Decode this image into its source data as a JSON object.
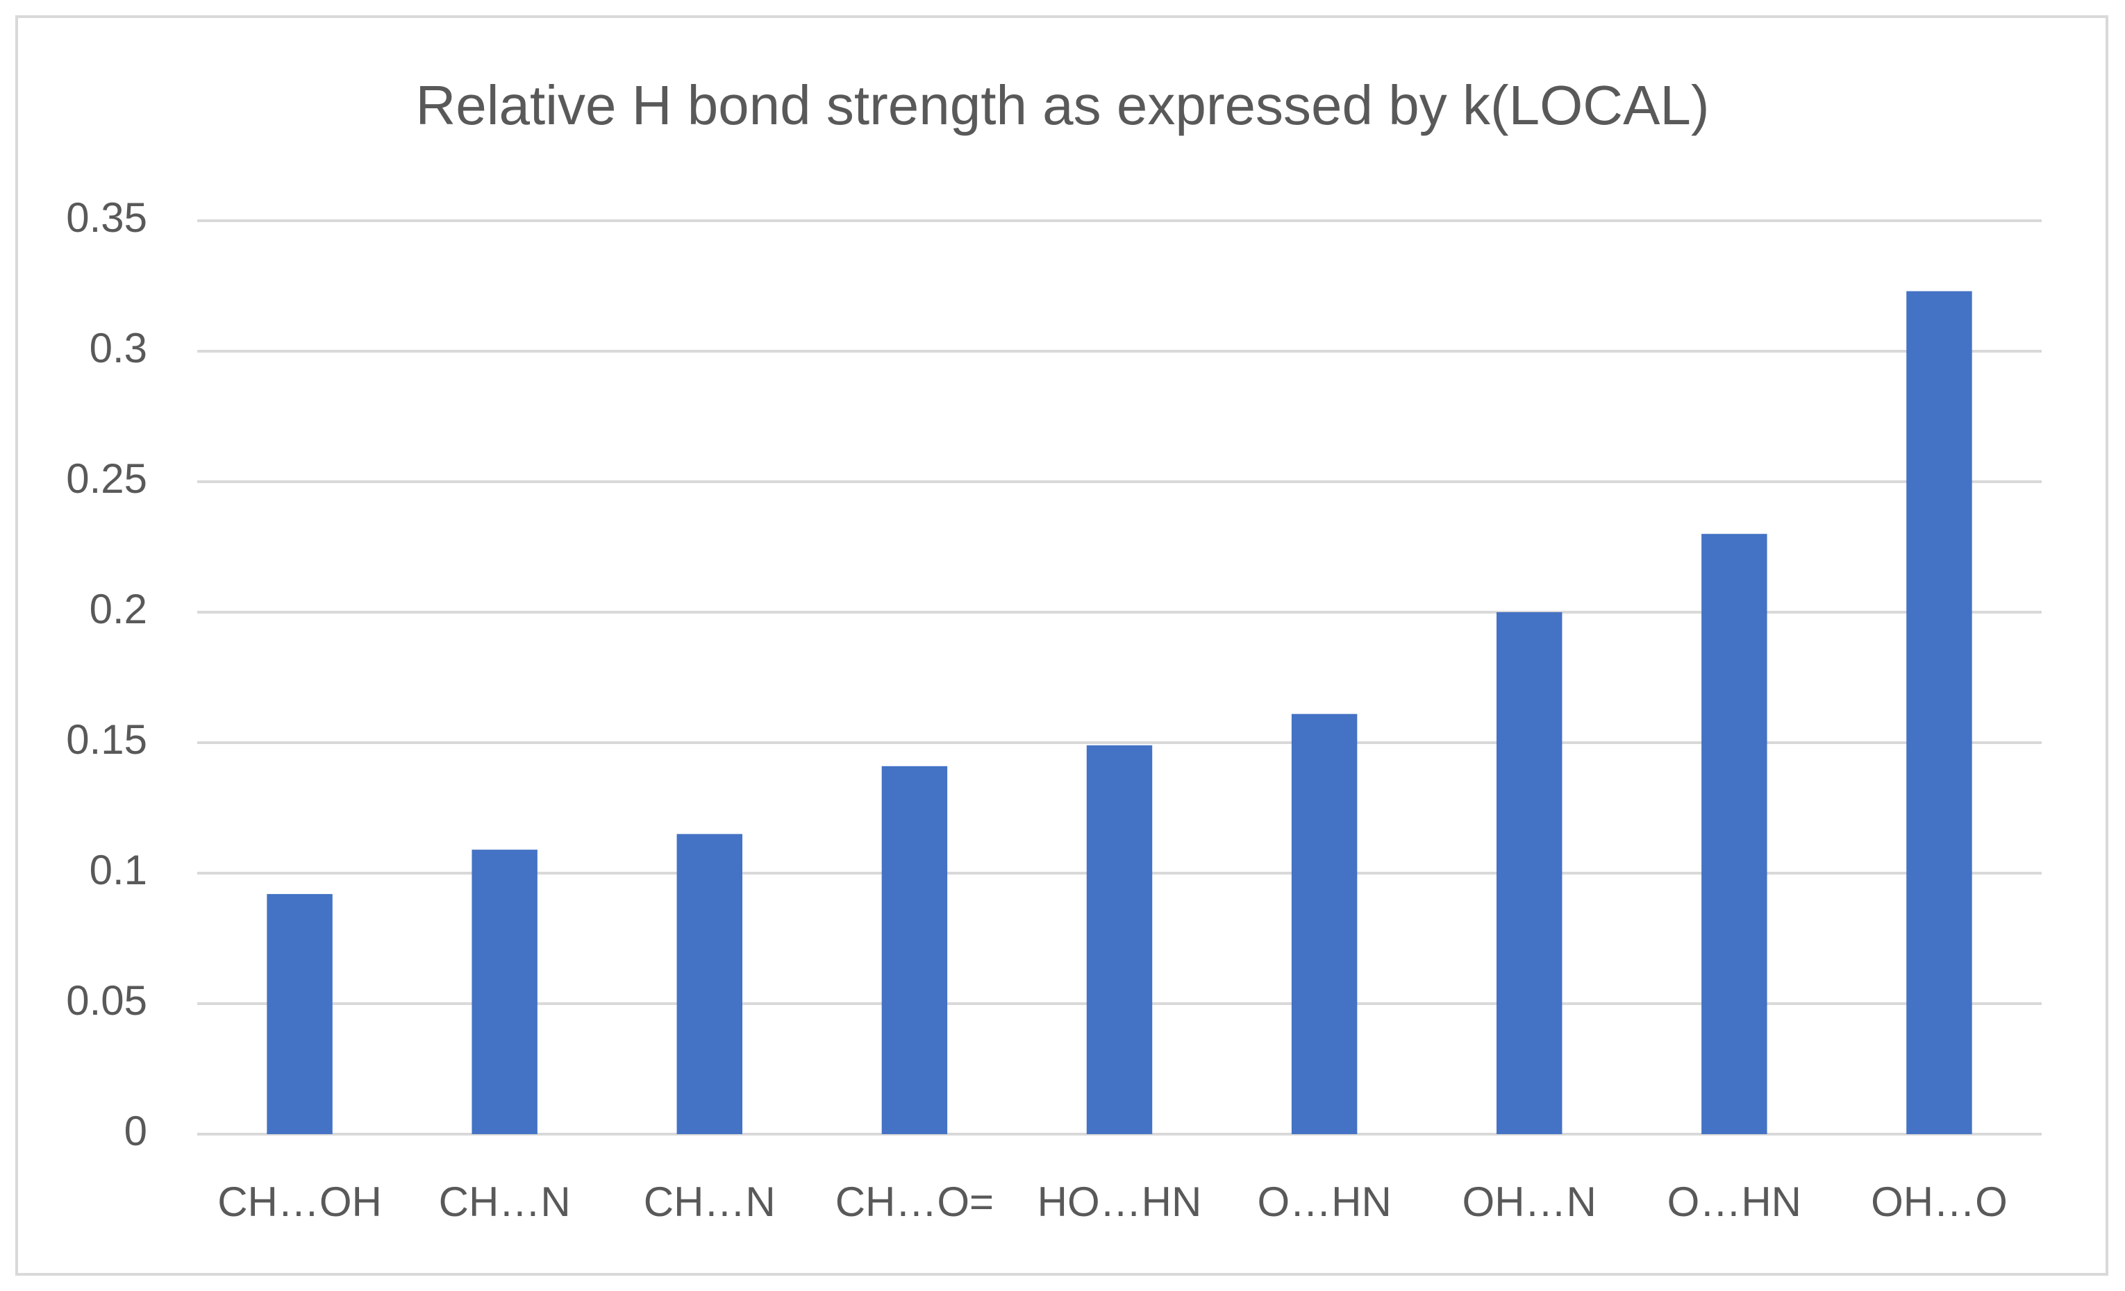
{
  "chart_data": {
    "type": "bar",
    "title": "Relative H bond strength as expressed by k(LOCAL)",
    "categories": [
      "CH…OH",
      "CH…N",
      "CH…N",
      "CH…O=",
      "HO…HN",
      "O…HN",
      "OH…N",
      "O…HN",
      "OH…O"
    ],
    "values": [
      0.092,
      0.109,
      0.115,
      0.141,
      0.149,
      0.161,
      0.2,
      0.23,
      0.323
    ],
    "color": "#4472c4",
    "ylim": [
      0,
      0.35
    ],
    "yticks": [
      0,
      0.05,
      0.1,
      0.15,
      0.2,
      0.25,
      0.3,
      0.35
    ],
    "grid": true
  }
}
